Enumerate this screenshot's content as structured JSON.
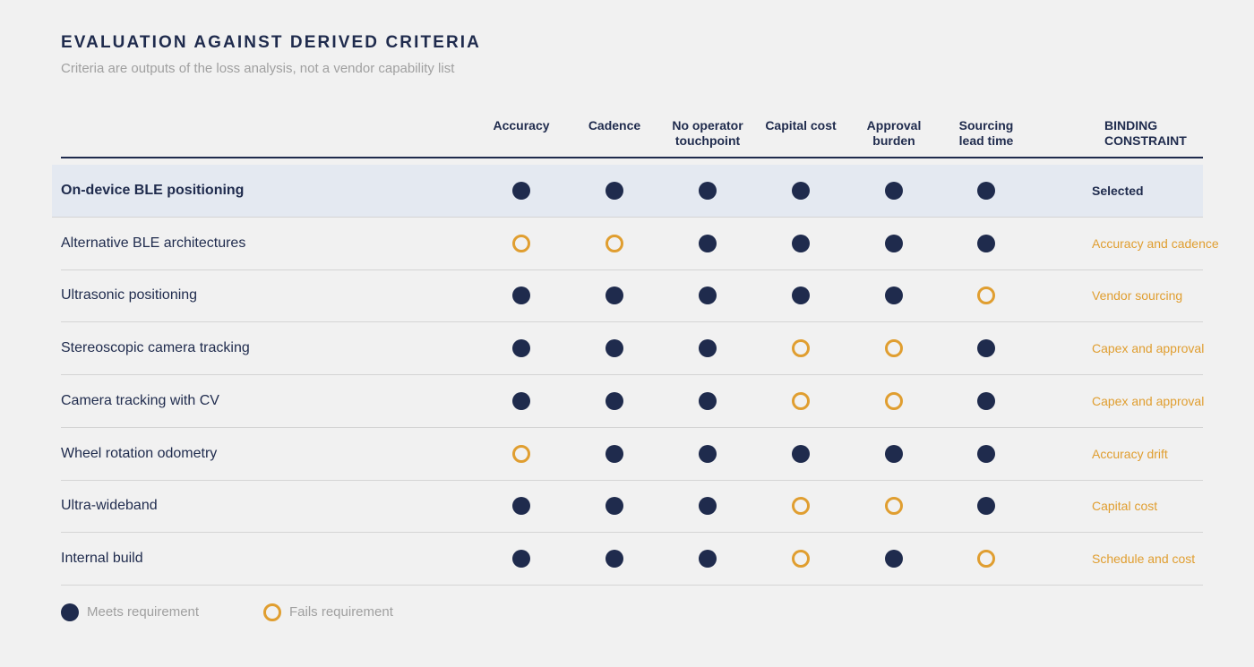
{
  "title": "EVALUATION AGAINST DERIVED CRITERIA",
  "subtitle": "Criteria are outputs of the loss analysis, not a vendor capability list",
  "columns": [
    {
      "key": "accuracy",
      "label": "Accuracy"
    },
    {
      "key": "cadence",
      "label": "Cadence"
    },
    {
      "key": "no_operator_touchpoint",
      "label": "No operator touchpoint"
    },
    {
      "key": "capital_cost",
      "label": "Capital cost"
    },
    {
      "key": "approval_burden",
      "label": "Approval burden"
    },
    {
      "key": "sourcing_lead_time",
      "label": "Sourcing lead time"
    }
  ],
  "binding_header": "BINDING CONSTRAINT",
  "rows": [
    {
      "name": "On-device BLE positioning",
      "selected": true,
      "results": [
        "meets",
        "meets",
        "meets",
        "meets",
        "meets",
        "meets"
      ],
      "binding": "Selected"
    },
    {
      "name": "Alternative BLE architectures",
      "selected": false,
      "results": [
        "fails",
        "fails",
        "meets",
        "meets",
        "meets",
        "meets"
      ],
      "binding": "Accuracy and cadence"
    },
    {
      "name": "Ultrasonic positioning",
      "selected": false,
      "results": [
        "meets",
        "meets",
        "meets",
        "meets",
        "meets",
        "fails"
      ],
      "binding": "Vendor sourcing"
    },
    {
      "name": "Stereoscopic camera tracking",
      "selected": false,
      "results": [
        "meets",
        "meets",
        "meets",
        "fails",
        "fails",
        "meets"
      ],
      "binding": "Capex and approval"
    },
    {
      "name": "Camera tracking with CV",
      "selected": false,
      "results": [
        "meets",
        "meets",
        "meets",
        "fails",
        "fails",
        "meets"
      ],
      "binding": "Capex and approval"
    },
    {
      "name": "Wheel rotation odometry",
      "selected": false,
      "results": [
        "fails",
        "meets",
        "meets",
        "meets",
        "meets",
        "meets"
      ],
      "binding": "Accuracy drift"
    },
    {
      "name": "Ultra-wideband",
      "selected": false,
      "results": [
        "meets",
        "meets",
        "meets",
        "fails",
        "fails",
        "meets"
      ],
      "binding": "Capital cost"
    },
    {
      "name": "Internal build",
      "selected": false,
      "results": [
        "meets",
        "meets",
        "meets",
        "fails",
        "meets",
        "fails"
      ],
      "binding": "Schedule and cost"
    }
  ],
  "legend": {
    "meets_label": "Meets requirement",
    "fails_label": "Fails requirement"
  },
  "colors": {
    "navy": "#1f2b4d",
    "amber": "#e09e30",
    "selected_row_bg": "#e4e9f1"
  }
}
